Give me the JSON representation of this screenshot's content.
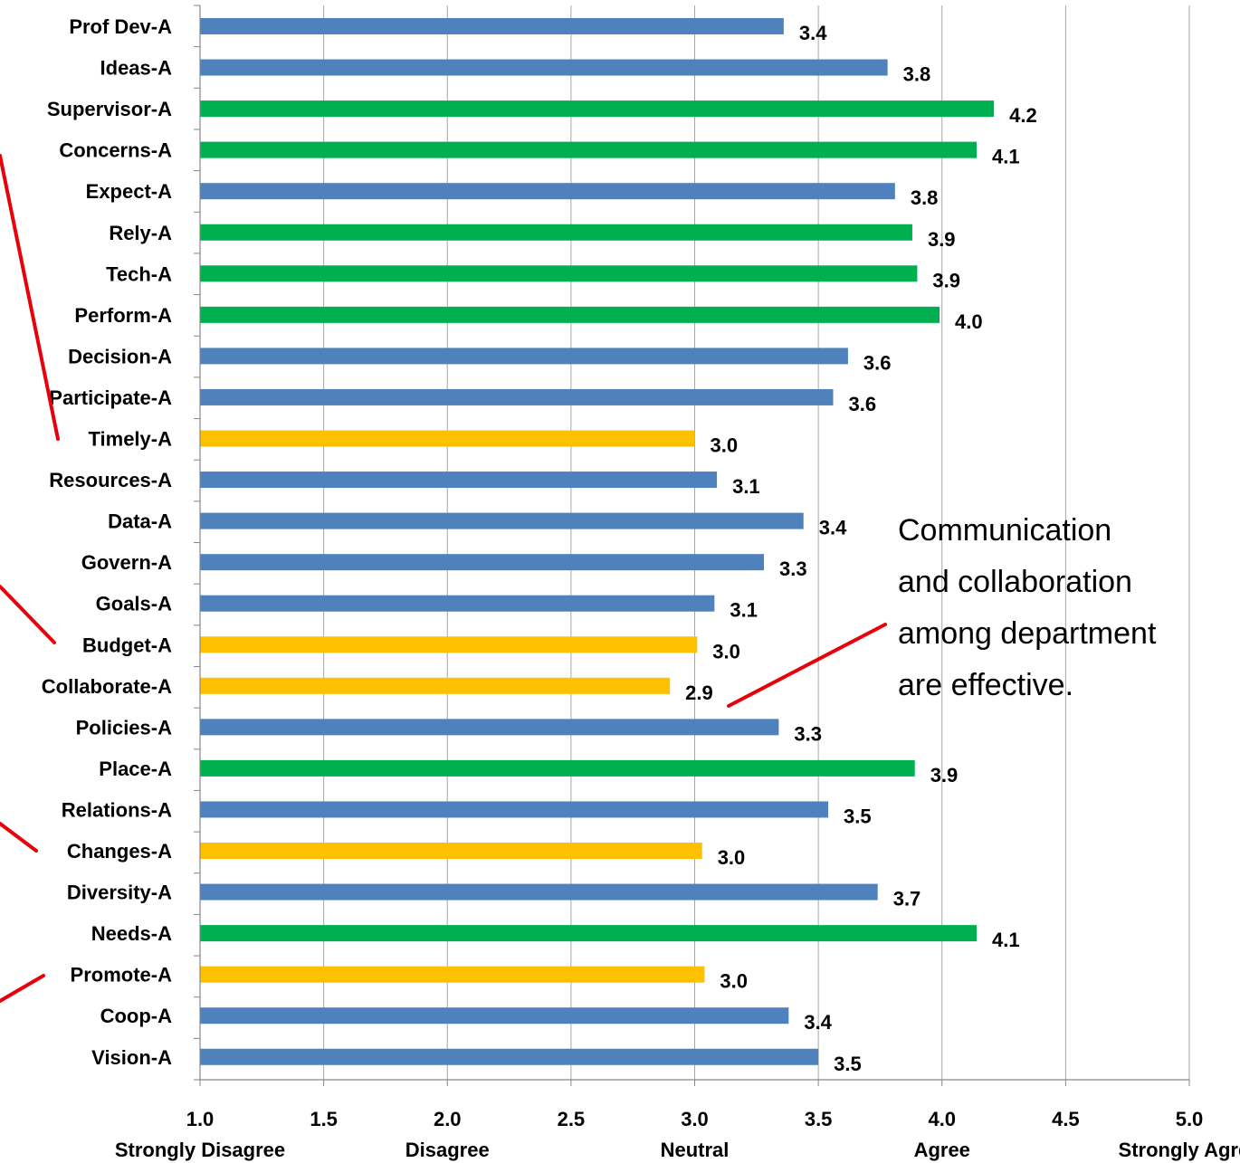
{
  "chart_data": {
    "type": "bar",
    "orientation": "horizontal",
    "categories": [
      "Prof Dev-A",
      "Ideas-A",
      "Supervisor-A",
      "Concerns-A",
      "Expect-A",
      "Rely-A",
      "Tech-A",
      "Perform-A",
      "Decision-A",
      "Participate-A",
      "Timely-A",
      "Resources-A",
      "Data-A",
      "Govern-A",
      "Goals-A",
      "Budget-A",
      "Collaborate-A",
      "Policies-A",
      "Place-A",
      "Relations-A",
      "Changes-A",
      "Diversity-A",
      "Needs-A",
      "Promote-A",
      "Coop-A",
      "Vision-A"
    ],
    "values": [
      3.36,
      3.78,
      4.21,
      4.14,
      3.81,
      3.88,
      3.9,
      3.99,
      3.62,
      3.56,
      3.0,
      3.09,
      3.44,
      3.28,
      3.08,
      3.01,
      2.9,
      3.34,
      3.89,
      3.54,
      3.03,
      3.74,
      4.14,
      3.04,
      3.38,
      3.5
    ],
    "value_labels": [
      "3.4",
      "3.8",
      "4.2",
      "4.1",
      "3.8",
      "3.9",
      "3.9",
      "4.0",
      "3.6",
      "3.6",
      "3.0",
      "3.1",
      "3.4",
      "3.3",
      "3.1",
      "3.0",
      "2.9",
      "3.3",
      "3.9",
      "3.5",
      "3.0",
      "3.7",
      "4.1",
      "3.0",
      "3.4",
      "3.5"
    ],
    "bar_colors": [
      "blue",
      "blue",
      "green",
      "green",
      "blue",
      "green",
      "green",
      "green",
      "blue",
      "blue",
      "yellow",
      "blue",
      "blue",
      "blue",
      "blue",
      "yellow",
      "yellow",
      "blue",
      "green",
      "blue",
      "yellow",
      "blue",
      "green",
      "yellow",
      "blue",
      "blue"
    ],
    "colors": {
      "blue": "#4f81bd",
      "green": "#00b050",
      "yellow": "#ffc000",
      "grid": "#a6a6a6",
      "leader": "#e8000b"
    },
    "xlim": [
      1.0,
      5.0
    ],
    "x_ticks": [
      {
        "value": 1.0,
        "label": "1.0"
      },
      {
        "value": 1.5,
        "label": "1.5"
      },
      {
        "value": 2.0,
        "label": "2.0"
      },
      {
        "value": 2.5,
        "label": "2.5"
      },
      {
        "value": 3.0,
        "label": "3.0"
      },
      {
        "value": 3.5,
        "label": "3.5"
      },
      {
        "value": 4.0,
        "label": "4.0"
      },
      {
        "value": 4.5,
        "label": "4.5"
      },
      {
        "value": 5.0,
        "label": "5.0"
      }
    ],
    "scale_labels": [
      {
        "value": 1.0,
        "label": "Strongly Disagree"
      },
      {
        "value": 2.0,
        "label": "Disagree"
      },
      {
        "value": 3.0,
        "label": "Neutral"
      },
      {
        "value": 4.0,
        "label": "Agree"
      },
      {
        "value": 5.0,
        "label": "Strongly Agree"
      }
    ],
    "grid": true,
    "annotation": {
      "lines": [
        "Communication",
        "and collaboration",
        "among department",
        "are effective."
      ],
      "points_to": "Collaborate-A"
    }
  }
}
